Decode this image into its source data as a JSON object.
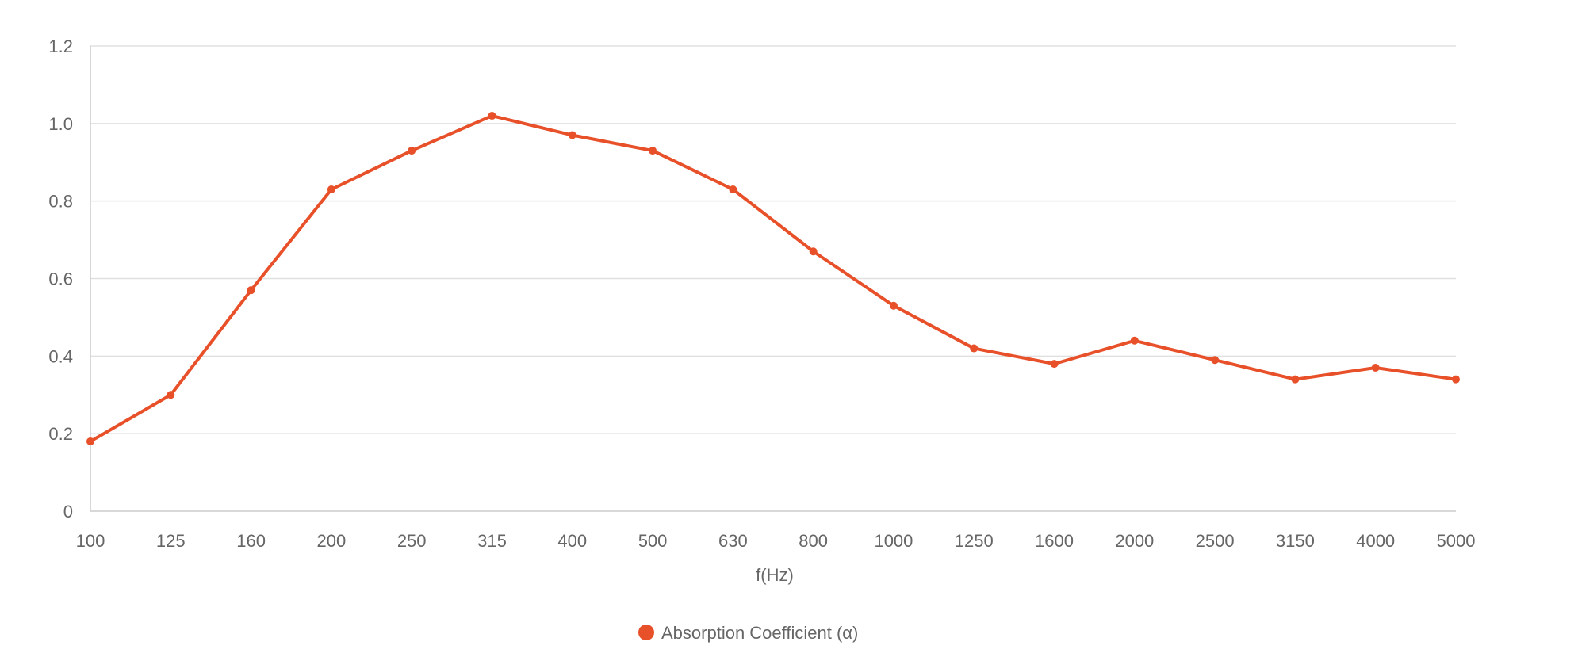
{
  "chart_data": {
    "type": "line",
    "title": "",
    "xlabel": "f(Hz)",
    "ylabel": "",
    "categories": [
      "100",
      "125",
      "160",
      "200",
      "250",
      "315",
      "400",
      "500",
      "630",
      "800",
      "1000",
      "1250",
      "1600",
      "2000",
      "2500",
      "3150",
      "4000",
      "5000"
    ],
    "series": [
      {
        "name": "Absorption Coefficient (α)",
        "color": "#e8502a",
        "values": [
          0.18,
          0.3,
          0.57,
          0.83,
          0.93,
          1.02,
          0.97,
          0.93,
          0.83,
          0.67,
          0.53,
          0.42,
          0.38,
          0.44,
          0.39,
          0.34,
          0.37,
          0.34
        ]
      }
    ],
    "ylim": [
      0,
      1.2
    ],
    "yticks": [
      0,
      0.2,
      0.4,
      0.6,
      0.8,
      1.0,
      1.2
    ],
    "ytick_labels": [
      "0",
      "0.2",
      "0.4",
      "0.6",
      "0.8",
      "1.0",
      "1.2"
    ],
    "grid": true,
    "legend_position": "bottom-center",
    "marker": "circle"
  }
}
